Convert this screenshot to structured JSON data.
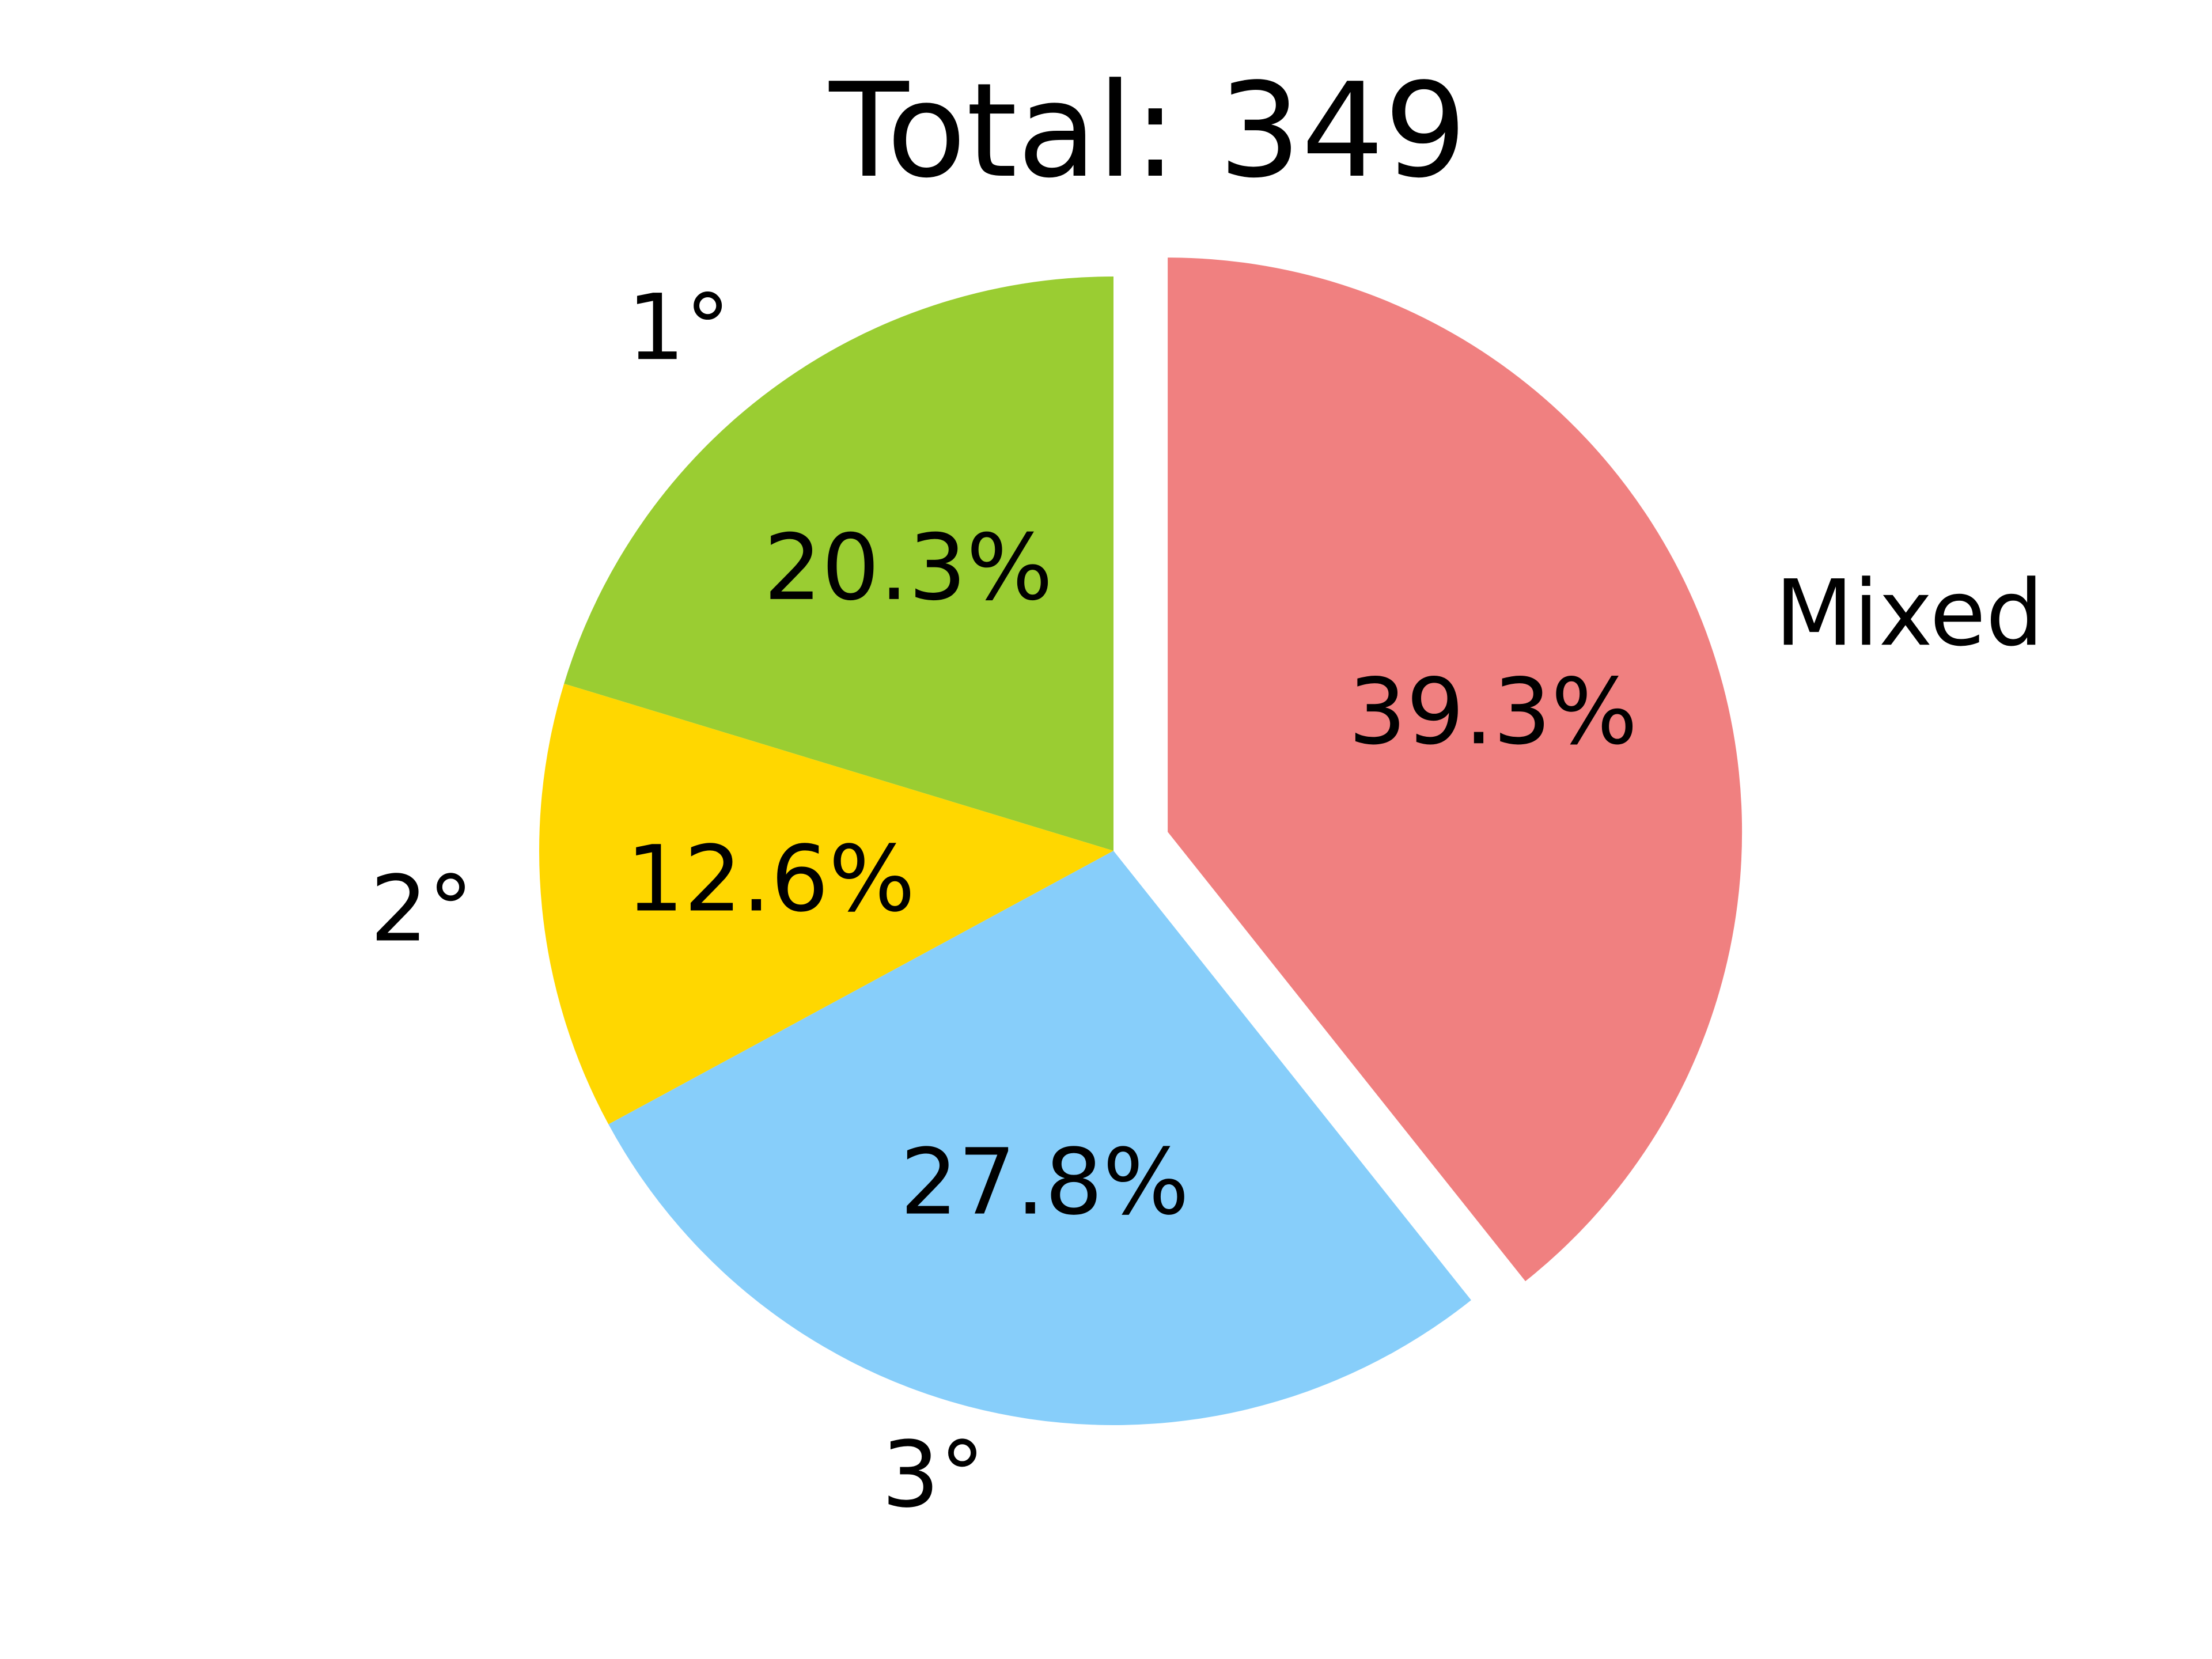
{
  "chart_data": {
    "type": "pie",
    "title": "Total: 349",
    "categories": [
      "1°",
      "2°",
      "3°",
      "Mixed"
    ],
    "values": [
      20.3,
      12.6,
      27.8,
      39.3
    ],
    "value_labels": [
      "20.3%",
      "12.6%",
      "27.8%",
      "39.3%"
    ],
    "colors": [
      "#9ACD32",
      "#FFD700",
      "#87CEFA",
      "#F08080"
    ],
    "exploded": [
      false,
      false,
      false,
      true
    ],
    "start_angle_deg": 90,
    "direction": "counterclockwise",
    "legend": "none"
  }
}
